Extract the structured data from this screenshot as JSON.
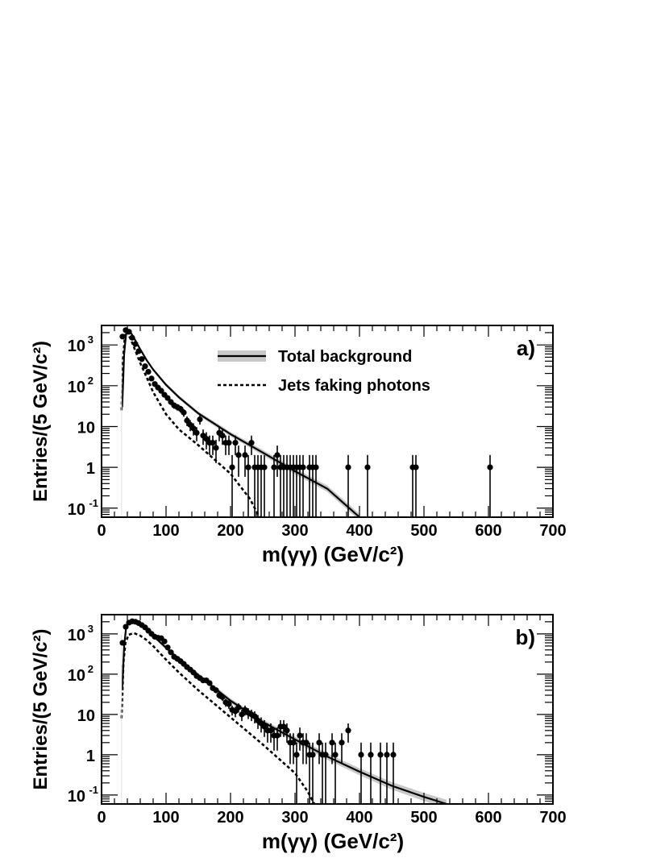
{
  "chart_data": [
    {
      "type": "scatter",
      "panel_label": "a)",
      "xlabel": "m(γγ) (GeV/c²)",
      "ylabel": "Entries/(5 GeV/c²)",
      "xlim": [
        0,
        700
      ],
      "ylim": [
        0.06,
        3000
      ],
      "yscale": "log",
      "x_ticks": [
        "0",
        "100",
        "200",
        "300",
        "400",
        "500",
        "600",
        "700"
      ],
      "y_ticks": [
        {
          "base": "10",
          "exp": "-1",
          "v": 0.1
        },
        {
          "base": "1",
          "exp": "",
          "v": 1
        },
        {
          "base": "10",
          "exp": "",
          "v": 10
        },
        {
          "base": "10",
          "exp": "2",
          "v": 100
        },
        {
          "base": "10",
          "exp": "3",
          "v": 1000
        }
      ],
      "legend": {
        "position": "top-center",
        "entries": [
          {
            "label": "Total background",
            "style": "solid-with-band"
          },
          {
            "label": "Jets faking photons",
            "style": "dashed"
          }
        ]
      },
      "series": [
        {
          "name": "Data",
          "kind": "points",
          "x": [
            32.5,
            37.5,
            42.5,
            47.5,
            52.5,
            57.5,
            62.5,
            67.5,
            72.5,
            77.5,
            82.5,
            87.5,
            92.5,
            97.5,
            102.5,
            107.5,
            112.5,
            117.5,
            122.5,
            127.5,
            132.5,
            137.5,
            142.5,
            147.5,
            152.5,
            157.5,
            162.5,
            167.5,
            172.5,
            177.5,
            182.5,
            187.5,
            192.5,
            197.5,
            202.5,
            207.5,
            212.5,
            222.5,
            227.5,
            232.5,
            237.5,
            242.5,
            247.5,
            252.5,
            267.5,
            272.5,
            277.5,
            282.5,
            287.5,
            292.5,
            297.5,
            302.5,
            307.5,
            312.5,
            322.5,
            327.5,
            332.5,
            382.5,
            412.5,
            482.5,
            487.5,
            602.5
          ],
          "y": [
            1600,
            2300,
            2100,
            1500,
            1050,
            700,
            450,
            300,
            220,
            150,
            110,
            90,
            75,
            60,
            50,
            40,
            33,
            30,
            27,
            22,
            14,
            11,
            9,
            7,
            15,
            6,
            5,
            4,
            4,
            3,
            7,
            6,
            4,
            4,
            1,
            4,
            2,
            2,
            1,
            4,
            1,
            1,
            1,
            1,
            1,
            2,
            1,
            1,
            1,
            1,
            1,
            1,
            1,
            1,
            1,
            1,
            1,
            1,
            1,
            1,
            1,
            1
          ]
        },
        {
          "name": "Total background",
          "kind": "line",
          "x": [
            32,
            35,
            38,
            40,
            45,
            50,
            60,
            70,
            80,
            100,
            120,
            150,
            200,
            250,
            300,
            350,
            400
          ],
          "y": [
            30,
            600,
            1800,
            2300,
            2050,
            1500,
            780,
            420,
            250,
            105,
            52,
            21,
            6.5,
            2.3,
            0.8,
            0.3,
            0.06
          ]
        },
        {
          "name": "Jets faking photons",
          "kind": "dashed",
          "x": [
            31,
            33,
            36,
            38,
            40,
            45,
            50,
            60,
            70,
            80,
            100,
            120,
            150,
            200,
            230,
            245
          ],
          "y": [
            25,
            400,
            1500,
            2100,
            2000,
            1400,
            900,
            360,
            160,
            70,
            20,
            8.5,
            3.5,
            0.7,
            0.17,
            0.06
          ]
        }
      ]
    },
    {
      "type": "scatter",
      "panel_label": "b)",
      "xlabel": "m(γγ) (GeV/c²)",
      "ylabel": "Entries/(5 GeV/c²)",
      "xlim": [
        0,
        700
      ],
      "ylim": [
        0.06,
        3000
      ],
      "yscale": "log",
      "x_ticks": [
        "0",
        "100",
        "200",
        "300",
        "400",
        "500",
        "600",
        "700"
      ],
      "y_ticks": [
        {
          "base": "10",
          "exp": "-1",
          "v": 0.1
        },
        {
          "base": "1",
          "exp": "",
          "v": 1
        },
        {
          "base": "10",
          "exp": "",
          "v": 10
        },
        {
          "base": "10",
          "exp": "2",
          "v": 100
        },
        {
          "base": "10",
          "exp": "3",
          "v": 1000
        }
      ],
      "series": [
        {
          "name": "Data",
          "kind": "points",
          "x": [
            32.5,
            37.5,
            42.5,
            47.5,
            52.5,
            57.5,
            62.5,
            67.5,
            72.5,
            77.5,
            82.5,
            87.5,
            92.5,
            97.5,
            102.5,
            107.5,
            112.5,
            117.5,
            122.5,
            127.5,
            132.5,
            137.5,
            142.5,
            147.5,
            152.5,
            157.5,
            162.5,
            167.5,
            172.5,
            177.5,
            182.5,
            187.5,
            192.5,
            197.5,
            202.5,
            207.5,
            212.5,
            217.5,
            222.5,
            227.5,
            232.5,
            237.5,
            242.5,
            247.5,
            252.5,
            257.5,
            262.5,
            267.5,
            272.5,
            277.5,
            282.5,
            287.5,
            292.5,
            297.5,
            302.5,
            307.5,
            312.5,
            317.5,
            322.5,
            327.5,
            337.5,
            342.5,
            347.5,
            357.5,
            362.5,
            372.5,
            382.5,
            402.5,
            417.5,
            432.5,
            442.5,
            452.5
          ],
          "y": [
            600,
            1500,
            1900,
            2050,
            2000,
            1850,
            1650,
            1450,
            1200,
            1000,
            850,
            800,
            780,
            650,
            460,
            350,
            270,
            240,
            210,
            180,
            150,
            130,
            110,
            90,
            80,
            70,
            70,
            60,
            45,
            40,
            30,
            27,
            20,
            18,
            13,
            12,
            15,
            10,
            13,
            11,
            10,
            9,
            7,
            6,
            5,
            4,
            4,
            3,
            3,
            5,
            5,
            4,
            2,
            2,
            1,
            3,
            2,
            2,
            1,
            1,
            2,
            1,
            1,
            2,
            1,
            2,
            4,
            1,
            1,
            1,
            1,
            1
          ]
        },
        {
          "name": "Total background",
          "kind": "line",
          "x": [
            32,
            35,
            38,
            42,
            48,
            55,
            65,
            80,
            100,
            120,
            150,
            200,
            250,
            300,
            350,
            400,
            450,
            500,
            535
          ],
          "y": [
            40,
            500,
            1400,
            1950,
            2050,
            1900,
            1500,
            900,
            450,
            240,
            95,
            22,
            6.5,
            2.4,
            0.9,
            0.38,
            0.17,
            0.09,
            0.06
          ]
        },
        {
          "name": "Jets faking photons",
          "kind": "dashed",
          "x": [
            31,
            34,
            37,
            42,
            50,
            60,
            70,
            80,
            100,
            120,
            150,
            200,
            250,
            300,
            320,
            330
          ],
          "y": [
            8,
            200,
            600,
            950,
            1050,
            900,
            700,
            500,
            230,
            110,
            40,
            8.5,
            1.8,
            0.35,
            0.12,
            0.06
          ]
        }
      ]
    }
  ]
}
